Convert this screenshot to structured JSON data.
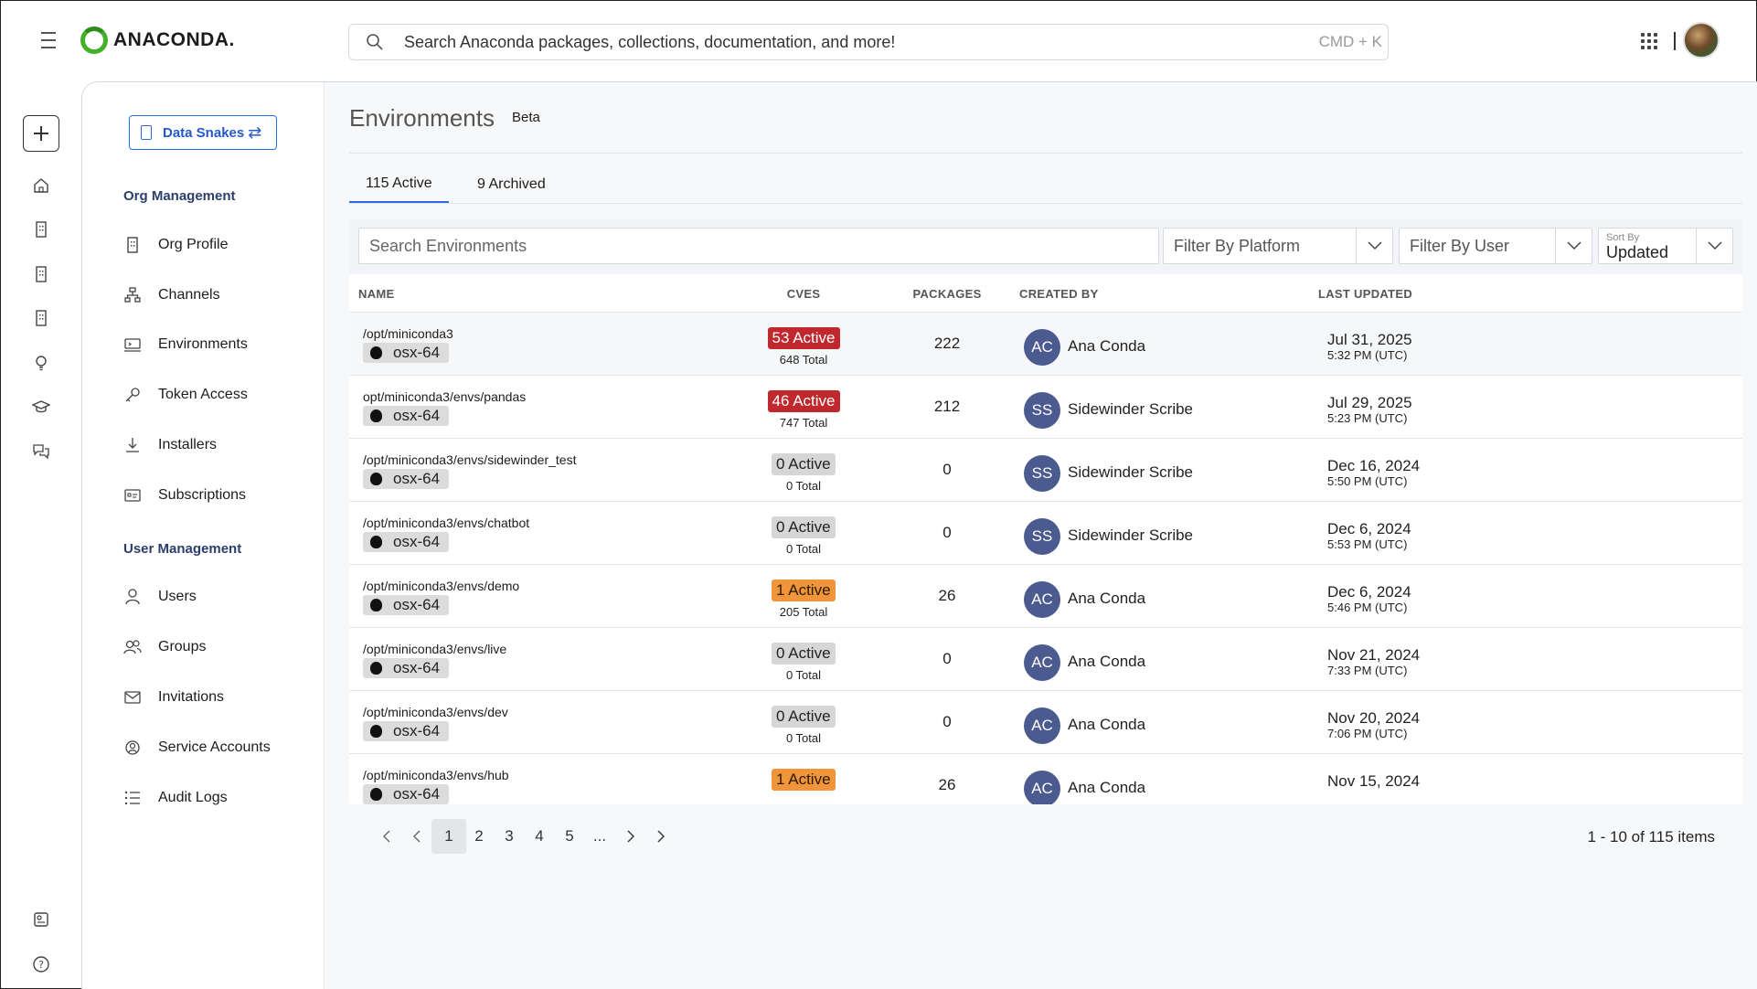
{
  "header": {
    "brand": "ANACONDA.",
    "search_placeholder": "Search Anaconda packages, collections, documentation, and more!",
    "search_shortcut": "CMD + K"
  },
  "org": {
    "name": "Data Snakes",
    "swap_glyph": "⇄"
  },
  "sidenav": {
    "org_section": "Org Management",
    "org_items": [
      {
        "label": "Org Profile",
        "icon": "building-icon"
      },
      {
        "label": "Channels",
        "icon": "channels-icon"
      },
      {
        "label": "Environments",
        "icon": "environments-icon"
      },
      {
        "label": "Token Access",
        "icon": "key-icon"
      },
      {
        "label": "Installers",
        "icon": "download-icon"
      },
      {
        "label": "Subscriptions",
        "icon": "subscription-card-icon"
      }
    ],
    "user_section": "User Management",
    "user_items": [
      {
        "label": "Users",
        "icon": "user-icon"
      },
      {
        "label": "Groups",
        "icon": "group-icon"
      },
      {
        "label": "Invitations",
        "icon": "envelope-icon"
      },
      {
        "label": "Service Accounts",
        "icon": "service-account-icon"
      },
      {
        "label": "Audit Logs",
        "icon": "list-icon"
      }
    ]
  },
  "page": {
    "title": "Environments",
    "badge": "Beta",
    "tabs": [
      {
        "label": "115 Active",
        "active": true
      },
      {
        "label": "9 Archived",
        "active": false
      }
    ]
  },
  "filters": {
    "search_placeholder": "Search Environments",
    "platform": "Filter By Platform",
    "user": "Filter By User",
    "sort_label": "Sort By",
    "sort_value": "Updated"
  },
  "table": {
    "columns": {
      "name": "NAME",
      "cves": "CVES",
      "packages": "PACKAGES",
      "created_by": "CREATED BY",
      "last_updated": "LAST UPDATED"
    },
    "rows": [
      {
        "path": "/opt/miniconda3",
        "platform": "osx-64",
        "cve_active": "53 Active",
        "cve_level": "red",
        "cve_total": "648 Total",
        "packages": "222",
        "initials": "AC",
        "user": "Ana Conda",
        "date": "Jul 31, 2025",
        "time": "5:32 PM (UTC)"
      },
      {
        "path": "opt/miniconda3/envs/pandas",
        "platform": "osx-64",
        "cve_active": "46 Active",
        "cve_level": "red",
        "cve_total": "747 Total",
        "packages": "212",
        "initials": "SS",
        "user": "Sidewinder Scribe",
        "date": "Jul 29, 2025",
        "time": "5:23 PM (UTC)"
      },
      {
        "path": "/opt/miniconda3/envs/sidewinder_test",
        "platform": "osx-64",
        "cve_active": "0 Active",
        "cve_level": "gray",
        "cve_total": "0 Total",
        "packages": "0",
        "initials": "SS",
        "user": "Sidewinder Scribe",
        "date": "Dec 16, 2024",
        "time": "5:50 PM (UTC)"
      },
      {
        "path": "/opt/miniconda3/envs/chatbot",
        "platform": "osx-64",
        "cve_active": "0 Active",
        "cve_level": "gray",
        "cve_total": "0 Total",
        "packages": "0",
        "initials": "SS",
        "user": "Sidewinder Scribe",
        "date": "Dec 6, 2024",
        "time": "5:53 PM (UTC)"
      },
      {
        "path": "/opt/miniconda3/envs/demo",
        "platform": "osx-64",
        "cve_active": "1 Active",
        "cve_level": "orange",
        "cve_total": "205 Total",
        "packages": "26",
        "initials": "AC",
        "user": "Ana Conda",
        "date": "Dec 6, 2024",
        "time": "5:46 PM (UTC)"
      },
      {
        "path": "/opt/miniconda3/envs/live",
        "platform": "osx-64",
        "cve_active": "0 Active",
        "cve_level": "gray",
        "cve_total": "0 Total",
        "packages": "0",
        "initials": "AC",
        "user": "Ana Conda",
        "date": "Nov 21, 2024",
        "time": "7:33 PM (UTC)"
      },
      {
        "path": "/opt/miniconda3/envs/dev",
        "platform": "osx-64",
        "cve_active": "0 Active",
        "cve_level": "gray",
        "cve_total": "0 Total",
        "packages": "0",
        "initials": "AC",
        "user": "Ana Conda",
        "date": "Nov 20, 2024",
        "time": "7:06 PM (UTC)"
      },
      {
        "path": "/opt/miniconda3/envs/hub",
        "platform": "osx-64",
        "cve_active": "1 Active",
        "cve_level": "orange",
        "cve_total": "",
        "packages": "26",
        "initials": "AC",
        "user": "Ana Conda",
        "date": "Nov 15, 2024",
        "time": ""
      }
    ]
  },
  "pagination": {
    "pages": [
      "1",
      "2",
      "3",
      "4",
      "5",
      "..."
    ],
    "current": "1",
    "info": "1 - 10 of 115 items"
  },
  "colors": {
    "accent": "#2d6ae0",
    "cve_red": "#c0282d",
    "cve_orange": "#f0953a",
    "avatar": "#4b5a8f"
  }
}
